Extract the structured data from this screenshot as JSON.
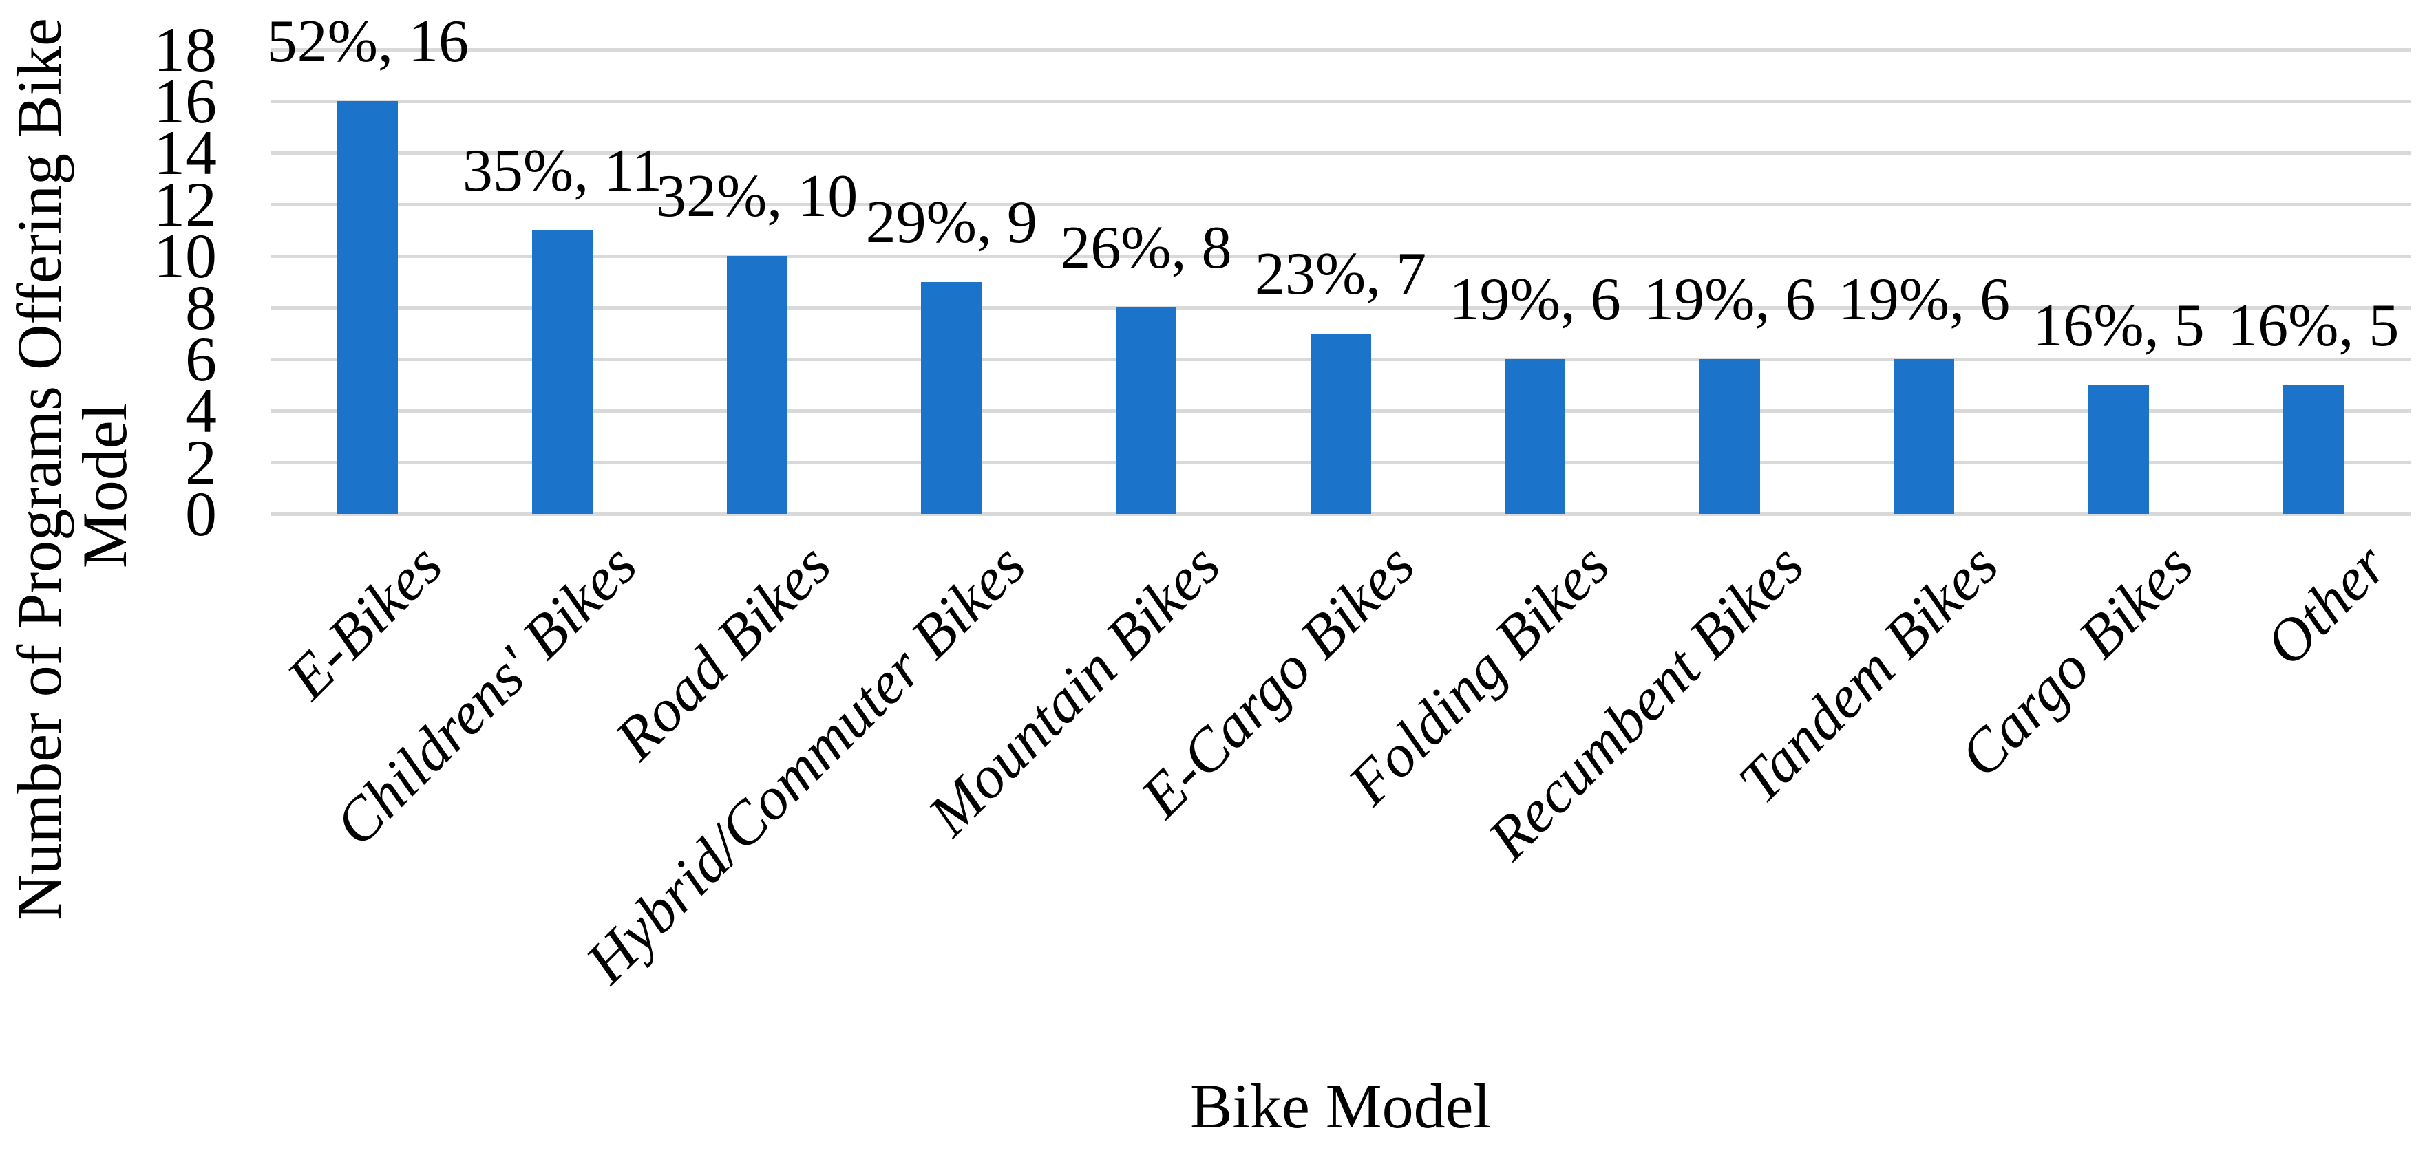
{
  "chart_data": {
    "type": "bar",
    "title": "",
    "xlabel": "Bike Model",
    "ylabel": "Number of Programs Offering Bike Model",
    "ylabel_line1": "Number of Programs Offering Bike",
    "ylabel_line2": "Model",
    "categories": [
      "E-Bikes",
      "Childrens' Bikes",
      "Road Bikes",
      "Hybrid/Commuter Bikes",
      "Mountain Bikes",
      "E-Cargo Bikes",
      "Folding Bikes",
      "Recumbent Bikes",
      "Tandem Bikes",
      "Cargo Bikes",
      "Other"
    ],
    "values": [
      16,
      11,
      10,
      9,
      8,
      7,
      6,
      6,
      6,
      5,
      5
    ],
    "percents": [
      52,
      35,
      32,
      29,
      26,
      23,
      19,
      19,
      19,
      16,
      16
    ],
    "data_labels": [
      "52%, 16",
      "35%, 11",
      "32%, 10",
      "29%, 9",
      "26%, 8",
      "23%, 7",
      "19%, 6",
      "19%, 6",
      "19%, 6",
      "16%, 5",
      "16%, 5"
    ],
    "yticks": [
      0,
      2,
      4,
      6,
      8,
      10,
      12,
      14,
      16,
      18
    ],
    "ylim": [
      0,
      18
    ],
    "grid": true,
    "legend": null,
    "colors": {
      "bar": "#1B74C9",
      "gridline": "#D9D9D9",
      "text": "#000000",
      "background": "#FFFFFF"
    }
  }
}
